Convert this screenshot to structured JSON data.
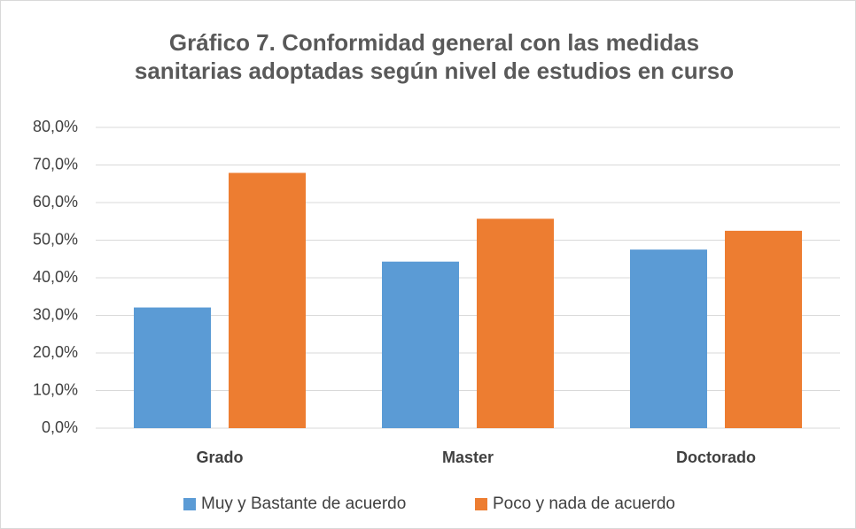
{
  "chart_data": {
    "type": "bar",
    "title": [
      "Gráfico 7. Conformidad general con las medidas",
      "sanitarias adoptadas según nivel de estudios en curso"
    ],
    "categories": [
      "Grado",
      "Master",
      "Doctorado"
    ],
    "series": [
      {
        "name": "Muy y Bastante de acuerdo",
        "color": "#5b9bd5",
        "values": [
          32.1,
          44.3,
          47.5
        ]
      },
      {
        "name": "Poco y nada de acuerdo",
        "color": "#ed7d31",
        "values": [
          67.9,
          55.7,
          52.5
        ]
      }
    ],
    "ylim": [
      0,
      80
    ],
    "yticks": [
      {
        "value": 0,
        "label": "0,0%"
      },
      {
        "value": 10,
        "label": "10,0%"
      },
      {
        "value": 20,
        "label": "20,0%"
      },
      {
        "value": 30,
        "label": "30,0%"
      },
      {
        "value": 40,
        "label": "40,0%"
      },
      {
        "value": 50,
        "label": "50,0%"
      },
      {
        "value": 60,
        "label": "60,0%"
      },
      {
        "value": 70,
        "label": "70,0%"
      },
      {
        "value": 80,
        "label": "80,0%"
      }
    ],
    "grid": true,
    "legend": "bottom"
  }
}
